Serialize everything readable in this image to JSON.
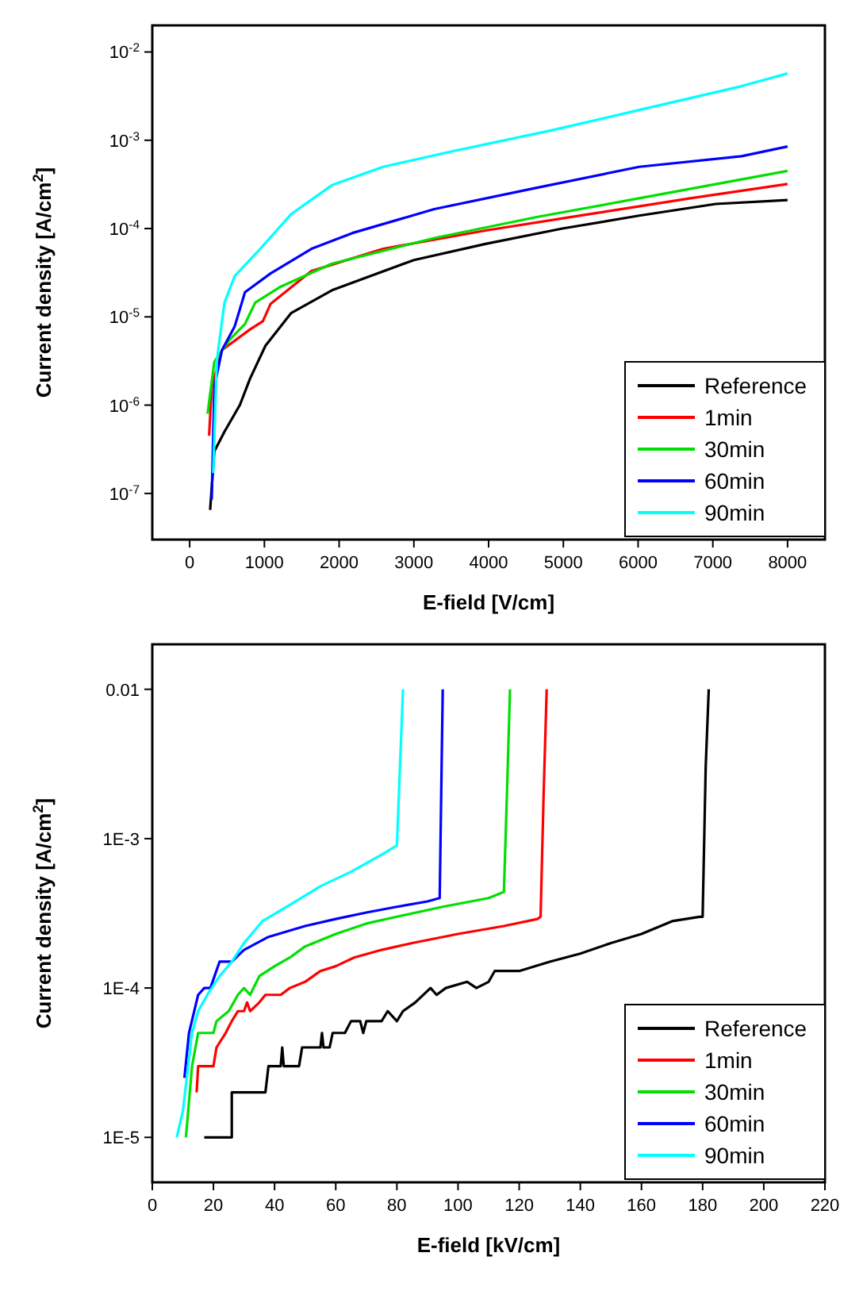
{
  "chart_data": [
    {
      "type": "line",
      "xlabel": "E-field [V/cm]",
      "ylabel": "Current density [A/cm$^{2}$]",
      "log": "y",
      "xlim": [
        -500,
        8500
      ],
      "xticks": [
        0,
        1000,
        2000,
        3000,
        4000,
        5000,
        6000,
        7000,
        8000
      ],
      "ylim": [
        3e-08,
        0.02
      ],
      "yticks": [
        {
          "value": 0.01,
          "label": "10$^{-2}$"
        },
        {
          "value": 0.001,
          "label": "10$^{-3}$"
        },
        {
          "value": 0.0001,
          "label": "10$^{-4}$"
        },
        {
          "value": 1e-05,
          "label": "10$^{-5}$"
        },
        {
          "value": 1e-06,
          "label": "10$^{-6}$"
        },
        {
          "value": 1e-07,
          "label": "10$^{-7}$"
        }
      ],
      "legend": "bottom right",
      "grid": false,
      "series": [
        {
          "name": "Reference",
          "color": "#000000",
          "x": [
            274,
            330,
            466,
            671,
            808,
            1014,
            1356,
            1904,
            3000,
            3959,
            4986,
            6014,
            7041,
            8000
          ],
          "values": [
            6.5e-08,
            3e-07,
            5e-07,
            1e-06,
            2e-06,
            4.7e-06,
            1.1e-05,
            2e-05,
            4.4e-05,
            6.7e-05,
            0.0001,
            0.00014,
            0.00019,
            0.00021
          ]
        },
        {
          "name": "1min",
          "color": "#ff0000",
          "x": [
            260,
            295,
            432,
            808,
            979,
            1082,
            1630,
            2589,
            3959,
            5329,
            6699,
            8000
          ],
          "values": [
            4.5e-07,
            1.6e-06,
            4.2e-06,
            7.2e-06,
            8.9e-06,
            1.4e-05,
            3.3e-05,
            5.9e-05,
            9.5e-05,
            0.000145,
            0.00022,
            0.00032
          ]
        },
        {
          "name": "30min",
          "color": "#00e000",
          "x": [
            240,
            330,
            534,
            740,
            877,
            1219,
            1904,
            3274,
            4644,
            6014,
            8000
          ],
          "values": [
            8e-07,
            3.1e-06,
            5.5e-06,
            8.3e-06,
            1.45e-05,
            2.2e-05,
            4e-05,
            7.8e-05,
            0.000135,
            0.00022,
            0.00045
          ]
        },
        {
          "name": "60min",
          "color": "#0000ff",
          "x": [
            295,
            330,
            432,
            603,
            740,
            1082,
            1630,
            2178,
            3274,
            4644,
            6014,
            7384,
            8000
          ],
          "values": [
            8.5e-08,
            1.6e-06,
            4.2e-06,
            7.8e-06,
            1.9e-05,
            3.1e-05,
            5.9e-05,
            8.9e-05,
            0.000166,
            0.00029,
            0.0005,
            0.00066,
            0.00085
          ]
        },
        {
          "name": "90min",
          "color": "#00ffff",
          "x": [
            315,
            363,
            466,
            603,
            945,
            1356,
            1904,
            2589,
            3548,
            4849,
            6014,
            7384,
            8000
          ],
          "values": [
            1.7e-07,
            3.2e-06,
            1.45e-05,
            2.9e-05,
            5.9e-05,
            0.000145,
            0.00031,
            0.0005,
            0.00076,
            0.0013,
            0.0022,
            0.0041,
            0.0057
          ]
        }
      ]
    },
    {
      "type": "line",
      "xlabel": "E-field [kV/cm]",
      "ylabel": "Current density [A/cm$^{2}$]",
      "log": "y",
      "xlim": [
        0,
        220
      ],
      "xticks": [
        0,
        20,
        40,
        60,
        80,
        100,
        120,
        140,
        160,
        180,
        200,
        220
      ],
      "ylim": [
        5e-06,
        0.02
      ],
      "yticks": [
        {
          "value": 0.01,
          "label": "0.01"
        },
        {
          "value": 0.001,
          "label": "1E-3"
        },
        {
          "value": 0.0001,
          "label": "1E-4"
        },
        {
          "value": 1e-05,
          "label": "1E-5"
        }
      ],
      "legend": "bottom right",
      "grid": false,
      "series": [
        {
          "name": "Reference",
          "color": "#000000",
          "x": [
            17,
            26,
            26,
            37,
            38,
            42,
            42.5,
            43,
            48,
            49,
            55,
            55.5,
            56,
            58,
            59,
            63,
            65,
            68,
            69,
            70,
            75,
            77,
            80,
            82,
            86,
            91,
            93,
            96,
            103,
            106,
            110,
            112,
            120,
            130,
            140,
            150,
            160,
            170,
            179,
            180,
            181,
            182
          ],
          "values": [
            1e-05,
            1e-05,
            2e-05,
            2e-05,
            3e-05,
            3e-05,
            4e-05,
            3e-05,
            3e-05,
            4e-05,
            4e-05,
            5e-05,
            4e-05,
            4e-05,
            5e-05,
            5e-05,
            6e-05,
            6e-05,
            5e-05,
            6e-05,
            6e-05,
            7e-05,
            6e-05,
            7e-05,
            8e-05,
            0.0001,
            9e-05,
            0.0001,
            0.00011,
            0.0001,
            0.00011,
            0.00013,
            0.00013,
            0.00015,
            0.00017,
            0.0002,
            0.00023,
            0.00028,
            0.0003,
            0.0003,
            0.003,
            0.01
          ]
        },
        {
          "name": "1min",
          "color": "#ff0000",
          "x": [
            14.5,
            15,
            20,
            21,
            24,
            26,
            28,
            30,
            31,
            32,
            35,
            37,
            42,
            45,
            50,
            55,
            60,
            66,
            75,
            85,
            100,
            115,
            126,
            127,
            128,
            129
          ],
          "values": [
            2e-05,
            3e-05,
            3e-05,
            4e-05,
            5e-05,
            6e-05,
            7e-05,
            7e-05,
            8e-05,
            7e-05,
            8e-05,
            9e-05,
            9e-05,
            0.0001,
            0.00011,
            0.00013,
            0.00014,
            0.00016,
            0.00018,
            0.0002,
            0.00023,
            0.00026,
            0.00029,
            0.0003,
            0.002,
            0.01
          ]
        },
        {
          "name": "30min",
          "color": "#00e000",
          "x": [
            11,
            13,
            15,
            20,
            21,
            25,
            28,
            30,
            32,
            35,
            40,
            45,
            50,
            60,
            70,
            80,
            95,
            110,
            115,
            116,
            117
          ],
          "values": [
            1e-05,
            3e-05,
            5e-05,
            5e-05,
            6e-05,
            7e-05,
            9e-05,
            0.0001,
            9e-05,
            0.00012,
            0.00014,
            0.00016,
            0.00019,
            0.00023,
            0.00027,
            0.0003,
            0.00035,
            0.0004,
            0.00044,
            0.002,
            0.01
          ]
        },
        {
          "name": "60min",
          "color": "#0000ff",
          "x": [
            10.5,
            12,
            15,
            17,
            19,
            22,
            26,
            30,
            38,
            50,
            60,
            70,
            80,
            90,
            94,
            95
          ],
          "values": [
            2.5e-05,
            5e-05,
            9e-05,
            0.0001,
            0.0001,
            0.00015,
            0.00015,
            0.00018,
            0.00022,
            0.00026,
            0.00029,
            0.00032,
            0.00035,
            0.00038,
            0.0004,
            0.01
          ]
        },
        {
          "name": "90min",
          "color": "#00ffff",
          "x": [
            8,
            10,
            13,
            15,
            18,
            22,
            26,
            30,
            36,
            45,
            55,
            65,
            75,
            80,
            81,
            82
          ],
          "values": [
            1e-05,
            1.5e-05,
            5e-05,
            7e-05,
            9e-05,
            0.00012,
            0.00015,
            0.0002,
            0.00028,
            0.00036,
            0.00048,
            0.0006,
            0.00078,
            0.0009,
            0.003,
            0.01
          ]
        }
      ]
    }
  ]
}
